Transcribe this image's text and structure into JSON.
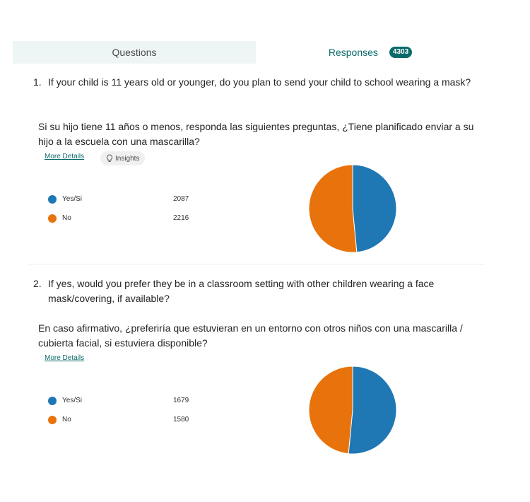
{
  "tabs": {
    "questions_label": "Questions",
    "responses_label": "Responses",
    "responses_count": "4303"
  },
  "colors": {
    "yes": "#1f77b4",
    "no": "#e8730c",
    "accent": "#0b6a6a"
  },
  "questions": [
    {
      "number": "1.",
      "text_en": "If your child is 11 years old or younger, do you plan to send your child to school wearing a mask?",
      "text_es": "Si su hijo tiene 11 años o menos, responda las siguientes preguntas, ¿Tiene planificado enviar a su hijo a   la escuela con una mascarilla?",
      "more_details": "More Details",
      "insights": "Insights",
      "options": [
        {
          "label": "Yes/Si",
          "count": 2087
        },
        {
          "label": "No",
          "count": 2216
        }
      ]
    },
    {
      "number": "2.",
      "text_en": "If yes, would you prefer they be in a classroom setting with other children wearing a face mask/covering, if available?",
      "text_es": "En caso afirmativo, ¿preferiría que estuvieran en un entorno con otros niños con una mascarilla / cubierta facial, si estuviera disponible?",
      "more_details": "More Details",
      "options": [
        {
          "label": "Yes/Si",
          "count": 1679
        },
        {
          "label": "No",
          "count": 1580
        }
      ]
    }
  ]
}
